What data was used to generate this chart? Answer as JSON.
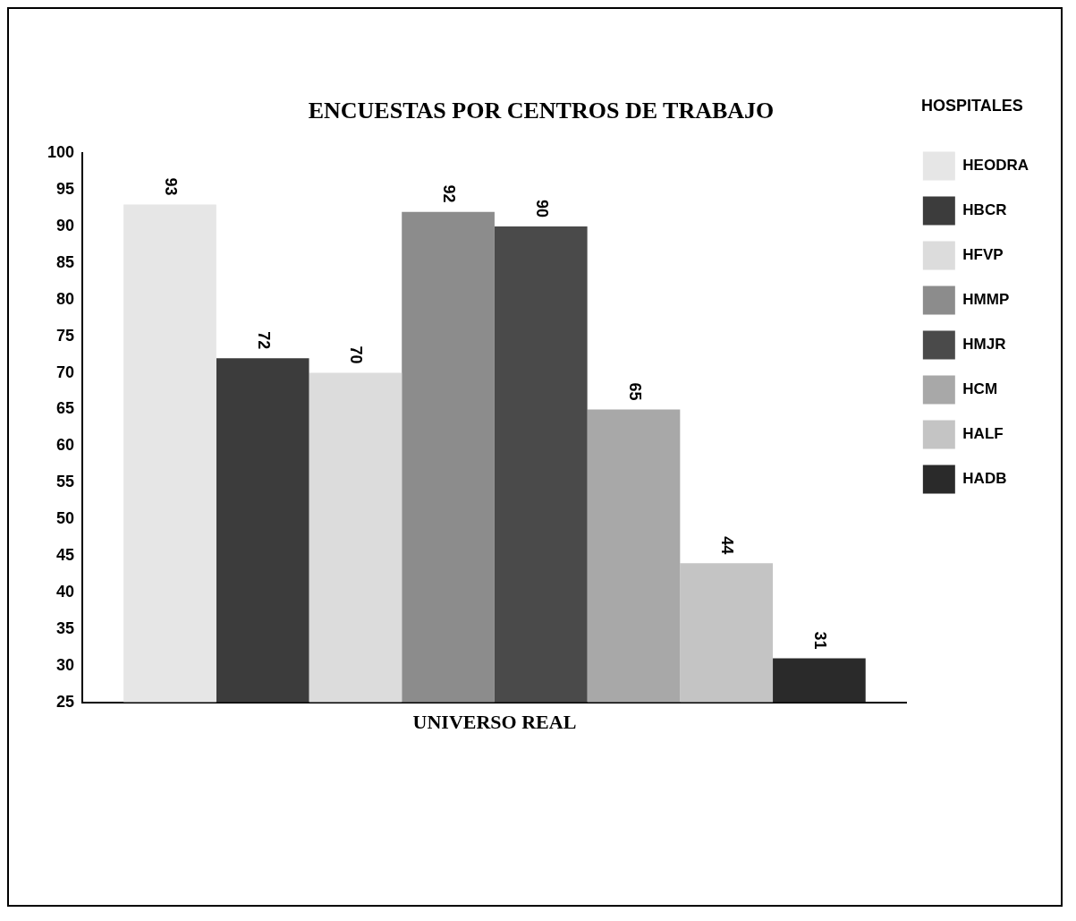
{
  "chart_data": {
    "type": "bar",
    "title": "ENCUESTAS POR CENTROS DE TRABAJO",
    "legend_title": "HOSPITALES",
    "categories": [
      "UNIVERSO REAL"
    ],
    "series": [
      {
        "name": "HEODRA",
        "color": "#e6e6e6",
        "values": [
          93
        ]
      },
      {
        "name": "HBCR",
        "color": "#3c3c3c",
        "values": [
          72
        ]
      },
      {
        "name": "HFVP",
        "color": "#dcdcdc",
        "values": [
          70
        ]
      },
      {
        "name": "HMMP",
        "color": "#8c8c8c",
        "values": [
          92
        ]
      },
      {
        "name": "HMJR",
        "color": "#4a4a4a",
        "values": [
          90
        ]
      },
      {
        "name": "HCM",
        "color": "#a8a8a8",
        "values": [
          65
        ]
      },
      {
        "name": "HALF",
        "color": "#c4c4c4",
        "values": [
          44
        ]
      },
      {
        "name": "HADB",
        "color": "#2a2a2a",
        "values": [
          31
        ]
      }
    ],
    "ylim": [
      25,
      100
    ],
    "yticks": [
      25,
      30,
      35,
      40,
      45,
      50,
      55,
      60,
      65,
      70,
      75,
      80,
      85,
      90,
      95,
      100
    ],
    "grid": false,
    "legend": "right",
    "data_labels": true
  }
}
